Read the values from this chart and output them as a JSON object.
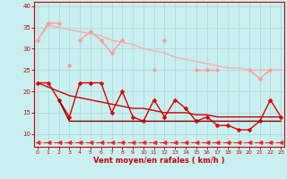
{
  "xlabel": "Vent moyen/en rafales ( km/h )",
  "background_color": "#c8f0f0",
  "grid_color": "#b8dada",
  "x_values": [
    0,
    1,
    2,
    3,
    4,
    5,
    6,
    7,
    8,
    9,
    10,
    11,
    12,
    13,
    14,
    15,
    16,
    17,
    18,
    19,
    20,
    21,
    22,
    23
  ],
  "ylim": [
    7,
    41
  ],
  "xlim": [
    -0.3,
    23.3
  ],
  "yticks": [
    10,
    15,
    20,
    25,
    30,
    35,
    40
  ],
  "xticks": [
    0,
    1,
    2,
    3,
    4,
    5,
    6,
    7,
    8,
    9,
    10,
    11,
    12,
    13,
    14,
    15,
    16,
    17,
    18,
    19,
    20,
    21,
    22,
    23
  ],
  "series": [
    {
      "color": "#ff9999",
      "lw": 1.0,
      "ms": 2.5,
      "marker": "D",
      "ls": "-",
      "y": [
        32,
        36,
        36,
        null,
        32,
        34,
        32,
        29,
        32,
        null,
        null,
        25,
        null,
        null,
        null,
        25,
        25,
        25,
        null,
        null,
        25,
        23,
        25,
        null
      ]
    },
    {
      "color": "#ffaaaa",
      "lw": 1.0,
      "ms": 0,
      "marker": null,
      "ls": "-",
      "y": [
        32,
        35.5,
        35,
        34.5,
        34,
        33.5,
        33,
        32,
        31.5,
        31,
        30,
        29.5,
        29,
        28,
        27.5,
        27,
        26.5,
        26,
        25.5,
        25.5,
        25,
        25,
        25,
        25
      ]
    },
    {
      "color": "#ff9999",
      "lw": 1.0,
      "ms": 2.5,
      "marker": "D",
      "ls": "-",
      "y": [
        null,
        null,
        null,
        26,
        null,
        null,
        null,
        null,
        null,
        null,
        null,
        null,
        32,
        null,
        null,
        null,
        null,
        null,
        null,
        null,
        null,
        null,
        null,
        null
      ]
    },
    {
      "color": "#dd0000",
      "lw": 1.0,
      "ms": 2.5,
      "marker": "D",
      "ls": "-",
      "y": [
        22,
        22,
        18,
        14,
        22,
        22,
        22,
        15,
        20,
        14,
        13,
        18,
        14,
        18,
        16,
        13,
        14,
        12,
        12,
        11,
        11,
        13,
        18,
        14
      ]
    },
    {
      "color": "#cc0000",
      "lw": 1.0,
      "ms": 0,
      "marker": null,
      "ls": "-",
      "y": [
        22,
        21,
        20,
        19,
        18.5,
        18,
        17.5,
        17,
        16.5,
        16,
        16,
        15.5,
        15,
        15,
        15,
        14.5,
        14.5,
        14,
        14,
        14,
        14,
        14,
        14,
        14
      ]
    },
    {
      "color": "#880000",
      "lw": 1.0,
      "ms": 0,
      "marker": null,
      "ls": "-",
      "y": [
        null,
        null,
        18,
        13,
        13,
        13,
        13,
        13,
        13,
        13,
        13,
        13,
        13,
        13,
        13,
        13,
        13,
        13,
        13,
        13,
        13,
        13,
        13,
        13
      ]
    },
    {
      "color": "#ee2222",
      "lw": 0.8,
      "ms": 3.5,
      "marker": "<",
      "ls": "--",
      "y": [
        8,
        8,
        8,
        8,
        8,
        8,
        8,
        8,
        8,
        8,
        8,
        8,
        8,
        8,
        8,
        8,
        8,
        8,
        8,
        8,
        8,
        8,
        8,
        8
      ]
    }
  ]
}
